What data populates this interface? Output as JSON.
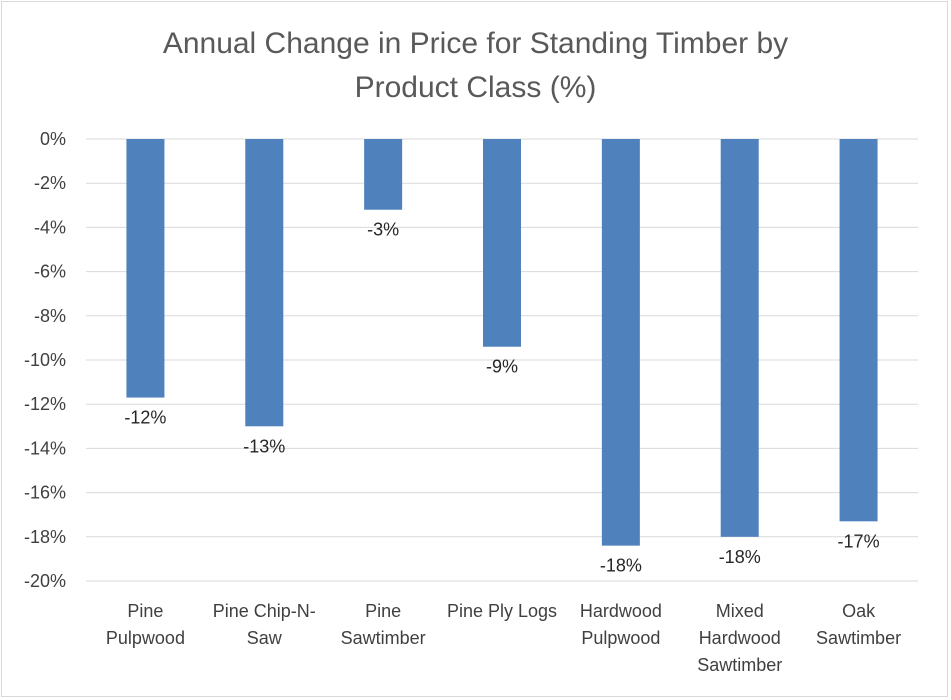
{
  "chart_data": {
    "type": "bar",
    "title": "Annual Change in Price for Standing Timber by Product Class (%)",
    "title_lines": [
      "Annual Change in Price for Standing Timber by",
      "Product Class (%)"
    ],
    "categories": [
      [
        "Pine",
        "Pulpwood"
      ],
      [
        "Pine Chip-N-",
        "Saw"
      ],
      [
        "Pine",
        "Sawtimber"
      ],
      [
        "Pine Ply Logs"
      ],
      [
        "Hardwood",
        "Pulpwood"
      ],
      [
        "Mixed",
        "Hardwood",
        "Sawtimber"
      ],
      [
        "Oak",
        "Sawtimber"
      ]
    ],
    "values": [
      -11.7,
      -13.0,
      -3.2,
      -9.4,
      -18.4,
      -18.0,
      -17.3
    ],
    "data_labels": [
      "-12%",
      "-13%",
      "-3%",
      "-9%",
      "-18%",
      "-18%",
      "-17%"
    ],
    "ylim": [
      -20,
      0
    ],
    "yticks": [
      0,
      -2,
      -4,
      -6,
      -8,
      -10,
      -12,
      -14,
      -16,
      -18,
      -20
    ],
    "ytick_labels": [
      "0%",
      "-2%",
      "-4%",
      "-6%",
      "-8%",
      "-10%",
      "-12%",
      "-14%",
      "-16%",
      "-18%",
      "-20%"
    ],
    "xlabel": "",
    "ylabel": "",
    "grid": true,
    "legend": "none",
    "bar_color": "#4f81bd",
    "grid_color": "#d9d9d9"
  }
}
